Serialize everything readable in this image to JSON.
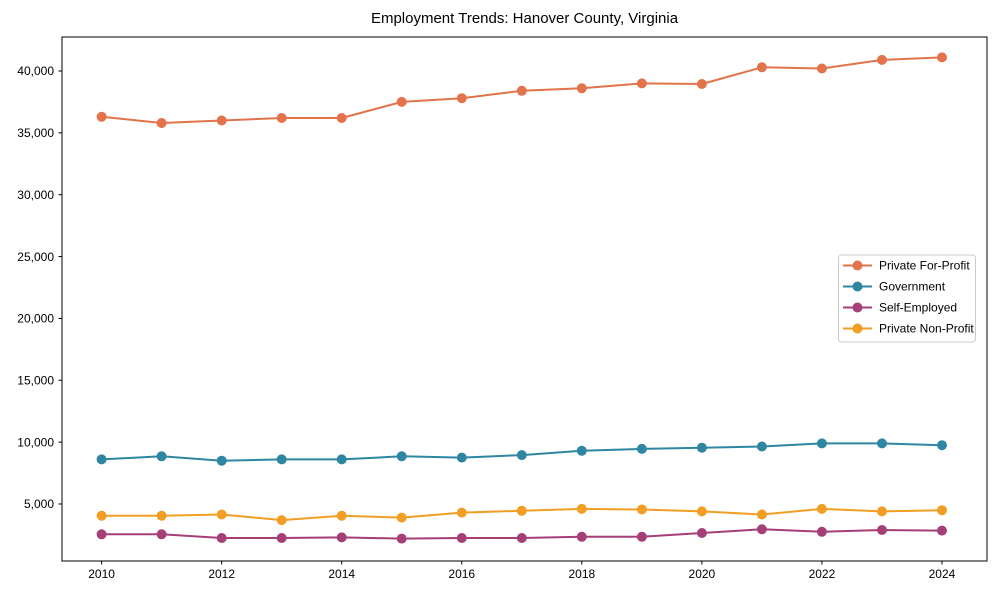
{
  "figure": {
    "title": "Employment Trends: Hanover County, Virginia"
  },
  "chart_data": {
    "type": "line",
    "title": "Employment Trends: Hanover County, Virginia",
    "xlabel": "",
    "ylabel": "",
    "grid": false,
    "legend_position": "center right",
    "marker": "circle",
    "x": [
      2010,
      2011,
      2012,
      2013,
      2014,
      2015,
      2016,
      2017,
      2018,
      2019,
      2020,
      2021,
      2022,
      2023,
      2024
    ],
    "x_ticks": [
      2010,
      2012,
      2014,
      2016,
      2018,
      2020,
      2022,
      2024
    ],
    "x_tick_labels": [
      "2010",
      "2012",
      "2014",
      "2016",
      "2018",
      "2020",
      "2022",
      "2024"
    ],
    "y_ticks": [
      5000,
      10000,
      15000,
      20000,
      25000,
      30000,
      35000,
      40000
    ],
    "y_tick_labels": [
      "5,000",
      "10,000",
      "15,000",
      "20,000",
      "25,000",
      "30,000",
      "35,000",
      "40,000"
    ],
    "xlim": [
      2009.34,
      2024.75
    ],
    "ylim": [
      390,
      42750
    ],
    "series": [
      {
        "name": "Private For-Profit",
        "color": "#E2734B",
        "values": [
          36300,
          35800,
          36000,
          36200,
          36200,
          37500,
          37800,
          38400,
          38600,
          39000,
          38950,
          40300,
          40200,
          40900,
          41100
        ]
      },
      {
        "name": "Government",
        "color": "#2E86A3",
        "values": [
          8600,
          8850,
          8500,
          8600,
          8600,
          8850,
          8750,
          8950,
          9300,
          9450,
          9550,
          9650,
          9900,
          9900,
          9750
        ]
      },
      {
        "name": "Self-Employed",
        "color": "#A53F77",
        "values": [
          2550,
          2550,
          2250,
          2250,
          2300,
          2200,
          2250,
          2250,
          2350,
          2350,
          2650,
          2950,
          2750,
          2900,
          2850
        ]
      },
      {
        "name": "Private Non-Profit",
        "color": "#F29D24",
        "values": [
          4050,
          4050,
          4150,
          3700,
          4050,
          3900,
          4300,
          4450,
          4600,
          4550,
          4400,
          4150,
          4600,
          4400,
          4500
        ]
      }
    ]
  }
}
